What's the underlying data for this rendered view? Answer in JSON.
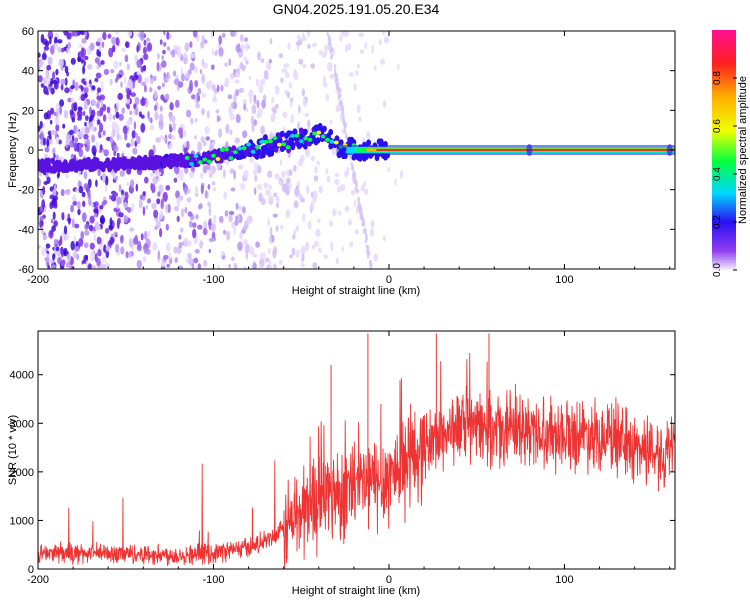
{
  "title": "GN04.2025.191.05.20.E34",
  "colors": {
    "snr_line": "#ee3333",
    "ridge_core": "#d81b1b",
    "frame": "#000000"
  },
  "chart_data": [
    {
      "type": "heatmap",
      "title": "GN04.2025.191.05.20.E34",
      "xlabel": "Height of straight line (km)",
      "ylabel": "Frequency (Hz)",
      "xlim": [
        -200,
        163
      ],
      "ylim": [
        -60,
        60
      ],
      "xticks": [
        "-200",
        "-100",
        "0",
        "100"
      ],
      "yticks": [
        "60",
        "40",
        "20",
        "0",
        "-20",
        "-40",
        "-60"
      ],
      "colorbar": {
        "label": "Normalized spectral amplitude",
        "range": [
          0,
          1
        ],
        "ticks": [
          "0.0",
          "0.2",
          "0.4",
          "0.6",
          "0.8"
        ],
        "colormap": "rainbow (purple → blue → cyan → green → yellow → red → magenta)"
      },
      "ridge": {
        "description": "dominant spectral ridge",
        "points": [
          {
            "x": -200,
            "y": -8,
            "amp": 0.15
          },
          {
            "x": -150,
            "y": -7,
            "amp": 0.18
          },
          {
            "x": -110,
            "y": -5,
            "amp": 0.25
          },
          {
            "x": -90,
            "y": -2,
            "amp": 0.3
          },
          {
            "x": -75,
            "y": 1,
            "amp": 0.35
          },
          {
            "x": -60,
            "y": 4,
            "amp": 0.4
          },
          {
            "x": -45,
            "y": 6,
            "amp": 0.45
          },
          {
            "x": -38,
            "y": 9,
            "amp": 0.45
          },
          {
            "x": -30,
            "y": 2,
            "amp": 0.55
          },
          {
            "x": -15,
            "y": 0,
            "amp": 0.75
          },
          {
            "x": 0,
            "y": 0,
            "amp": 0.9
          },
          {
            "x": 80,
            "y": 0,
            "amp": 0.95
          },
          {
            "x": 163,
            "y": 0,
            "amp": 1.0
          }
        ]
      }
    },
    {
      "type": "line",
      "xlabel": "Height of straight line (km)",
      "ylabel": "SNR (10 * v/v)",
      "xlim": [
        -200,
        163
      ],
      "ylim": [
        0,
        4900
      ],
      "xticks": [
        "-200",
        "-100",
        "0",
        "100"
      ],
      "yticks": [
        "0",
        "1000",
        "2000",
        "3000",
        "4000"
      ],
      "trend": [
        {
          "x": -200,
          "y": 320
        },
        {
          "x": -150,
          "y": 320
        },
        {
          "x": -120,
          "y": 280
        },
        {
          "x": -100,
          "y": 330
        },
        {
          "x": -80,
          "y": 450
        },
        {
          "x": -65,
          "y": 650
        },
        {
          "x": -55,
          "y": 1000
        },
        {
          "x": -45,
          "y": 1350
        },
        {
          "x": -35,
          "y": 1550
        },
        {
          "x": -20,
          "y": 1650
        },
        {
          "x": -5,
          "y": 1800
        },
        {
          "x": 10,
          "y": 2200
        },
        {
          "x": 25,
          "y": 2650
        },
        {
          "x": 40,
          "y": 2950
        },
        {
          "x": 60,
          "y": 2850
        },
        {
          "x": 80,
          "y": 2850
        },
        {
          "x": 100,
          "y": 2800
        },
        {
          "x": 120,
          "y": 2800
        },
        {
          "x": 140,
          "y": 2500
        },
        {
          "x": 163,
          "y": 2400
        }
      ],
      "peaks": [
        {
          "x": -33,
          "y": 4200
        },
        {
          "x": -12,
          "y": 4850
        },
        {
          "x": 27,
          "y": 4850
        },
        {
          "x": 57,
          "y": 4850
        }
      ]
    }
  ]
}
